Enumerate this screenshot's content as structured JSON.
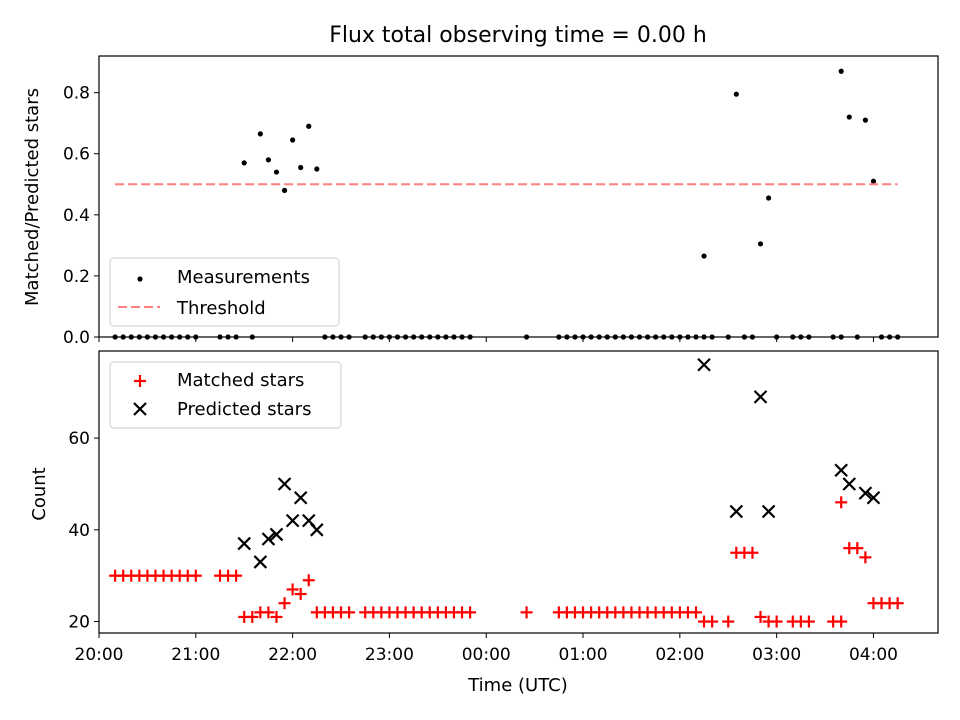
{
  "figure": {
    "title": "Flux total observing time = 0.00 h"
  },
  "chart_data": [
    {
      "type": "scatter",
      "ylabel": "Matched/Predicted stars",
      "xlabel": "",
      "xlim": [
        "20:00",
        "04:40"
      ],
      "ylim": [
        0,
        0.92
      ],
      "yticks": [
        0.0,
        0.2,
        0.4,
        0.6,
        0.8
      ],
      "ytick_labels": [
        "0.0",
        "0.2",
        "0.4",
        "0.6",
        "0.8"
      ],
      "legend": {
        "placement": "lower-left",
        "entries": [
          "Measurements",
          "Threshold"
        ]
      },
      "threshold": {
        "name": "Threshold",
        "value": 0.5,
        "x_start": "20:10",
        "x_end": "04:15",
        "color": "#ff7f7f"
      },
      "series": [
        {
          "name": "Measurements",
          "color": "#000000",
          "points": [
            [
              "20:10",
              0
            ],
            [
              "20:15",
              0
            ],
            [
              "20:20",
              0
            ],
            [
              "20:25",
              0
            ],
            [
              "20:30",
              0
            ],
            [
              "20:35",
              0
            ],
            [
              "20:40",
              0
            ],
            [
              "20:45",
              0
            ],
            [
              "20:50",
              0
            ],
            [
              "20:55",
              0
            ],
            [
              "21:00",
              0
            ],
            [
              "21:15",
              0
            ],
            [
              "21:20",
              0
            ],
            [
              "21:25",
              0
            ],
            [
              "21:30",
              0.57
            ],
            [
              "21:35",
              0
            ],
            [
              "21:40",
              0.665
            ],
            [
              "21:45",
              0.58
            ],
            [
              "21:50",
              0.54
            ],
            [
              "21:55",
              0.48
            ],
            [
              "22:00",
              0.645
            ],
            [
              "22:05",
              0.555
            ],
            [
              "22:10",
              0.69
            ],
            [
              "22:15",
              0.55
            ],
            [
              "22:20",
              0
            ],
            [
              "22:25",
              0
            ],
            [
              "22:30",
              0
            ],
            [
              "22:35",
              0
            ],
            [
              "22:45",
              0
            ],
            [
              "22:50",
              0
            ],
            [
              "22:55",
              0
            ],
            [
              "23:00",
              0
            ],
            [
              "23:05",
              0
            ],
            [
              "23:10",
              0
            ],
            [
              "23:15",
              0
            ],
            [
              "23:20",
              0
            ],
            [
              "23:25",
              0
            ],
            [
              "23:30",
              0
            ],
            [
              "23:35",
              0
            ],
            [
              "23:40",
              0
            ],
            [
              "23:45",
              0
            ],
            [
              "23:50",
              0
            ],
            [
              "00:25",
              0
            ],
            [
              "00:45",
              0
            ],
            [
              "00:50",
              0
            ],
            [
              "00:55",
              0
            ],
            [
              "01:00",
              0
            ],
            [
              "01:05",
              0
            ],
            [
              "01:10",
              0
            ],
            [
              "01:15",
              0
            ],
            [
              "01:20",
              0
            ],
            [
              "01:25",
              0
            ],
            [
              "01:30",
              0
            ],
            [
              "01:35",
              0
            ],
            [
              "01:40",
              0
            ],
            [
              "01:45",
              0
            ],
            [
              "01:50",
              0
            ],
            [
              "01:55",
              0
            ],
            [
              "02:00",
              0
            ],
            [
              "02:05",
              0
            ],
            [
              "02:10",
              0
            ],
            [
              "02:15",
              0
            ],
            [
              "02:15",
              0.265
            ],
            [
              "02:20",
              0
            ],
            [
              "02:30",
              0
            ],
            [
              "02:35",
              0.795
            ],
            [
              "02:40",
              0
            ],
            [
              "02:45",
              0
            ],
            [
              "02:50",
              0.305
            ],
            [
              "02:55",
              0.455
            ],
            [
              "03:00",
              0
            ],
            [
              "03:10",
              0
            ],
            [
              "03:15",
              0
            ],
            [
              "03:20",
              0
            ],
            [
              "03:35",
              0
            ],
            [
              "03:40",
              0
            ],
            [
              "03:40",
              0.87
            ],
            [
              "03:45",
              0.72
            ],
            [
              "03:50",
              0
            ],
            [
              "03:55",
              0.71
            ],
            [
              "04:00",
              0.51
            ],
            [
              "04:05",
              0
            ],
            [
              "04:10",
              0
            ],
            [
              "04:15",
              0
            ]
          ]
        }
      ]
    },
    {
      "type": "scatter",
      "ylabel": "Count",
      "xlabel": "Time (UTC)",
      "xlim": [
        "20:00",
        "04:40"
      ],
      "ylim": [
        17.5,
        79
      ],
      "yticks": [
        20,
        40,
        60
      ],
      "ytick_labels": [
        "20",
        "40",
        "60"
      ],
      "xticks": [
        "20:00",
        "21:00",
        "22:00",
        "23:00",
        "00:00",
        "01:00",
        "02:00",
        "03:00",
        "04:00"
      ],
      "legend": {
        "placement": "upper-left",
        "entries": [
          "Matched stars",
          "Predicted stars"
        ]
      },
      "series": [
        {
          "name": "Matched stars",
          "marker": "plus",
          "color": "#ff0000",
          "points": [
            [
              "20:10",
              30
            ],
            [
              "20:15",
              30
            ],
            [
              "20:20",
              30
            ],
            [
              "20:25",
              30
            ],
            [
              "20:30",
              30
            ],
            [
              "20:35",
              30
            ],
            [
              "20:40",
              30
            ],
            [
              "20:45",
              30
            ],
            [
              "20:50",
              30
            ],
            [
              "20:55",
              30
            ],
            [
              "21:00",
              30
            ],
            [
              "21:15",
              30
            ],
            [
              "21:20",
              30
            ],
            [
              "21:25",
              30
            ],
            [
              "21:30",
              21
            ],
            [
              "21:35",
              21
            ],
            [
              "21:40",
              22
            ],
            [
              "21:45",
              22
            ],
            [
              "21:50",
              21
            ],
            [
              "21:55",
              24
            ],
            [
              "22:00",
              27
            ],
            [
              "22:05",
              26
            ],
            [
              "22:10",
              29
            ],
            [
              "22:15",
              22
            ],
            [
              "22:20",
              22
            ],
            [
              "22:25",
              22
            ],
            [
              "22:30",
              22
            ],
            [
              "22:35",
              22
            ],
            [
              "22:45",
              22
            ],
            [
              "22:50",
              22
            ],
            [
              "22:55",
              22
            ],
            [
              "23:00",
              22
            ],
            [
              "23:05",
              22
            ],
            [
              "23:10",
              22
            ],
            [
              "23:15",
              22
            ],
            [
              "23:20",
              22
            ],
            [
              "23:25",
              22
            ],
            [
              "23:30",
              22
            ],
            [
              "23:35",
              22
            ],
            [
              "23:40",
              22
            ],
            [
              "23:45",
              22
            ],
            [
              "23:50",
              22
            ],
            [
              "00:25",
              22
            ],
            [
              "00:45",
              22
            ],
            [
              "00:50",
              22
            ],
            [
              "00:55",
              22
            ],
            [
              "01:00",
              22
            ],
            [
              "01:05",
              22
            ],
            [
              "01:10",
              22
            ],
            [
              "01:15",
              22
            ],
            [
              "01:20",
              22
            ],
            [
              "01:25",
              22
            ],
            [
              "01:30",
              22
            ],
            [
              "01:35",
              22
            ],
            [
              "01:40",
              22
            ],
            [
              "01:45",
              22
            ],
            [
              "01:50",
              22
            ],
            [
              "01:55",
              22
            ],
            [
              "02:00",
              22
            ],
            [
              "02:05",
              22
            ],
            [
              "02:10",
              22
            ],
            [
              "02:15",
              20
            ],
            [
              "02:20",
              20
            ],
            [
              "02:30",
              20
            ],
            [
              "02:35",
              35
            ],
            [
              "02:40",
              35
            ],
            [
              "02:45",
              35
            ],
            [
              "02:50",
              21
            ],
            [
              "02:55",
              20
            ],
            [
              "03:00",
              20
            ],
            [
              "03:10",
              20
            ],
            [
              "03:15",
              20
            ],
            [
              "03:20",
              20
            ],
            [
              "03:35",
              20
            ],
            [
              "03:40",
              20
            ],
            [
              "03:40",
              46
            ],
            [
              "03:45",
              36
            ],
            [
              "03:50",
              36
            ],
            [
              "03:55",
              34
            ],
            [
              "04:00",
              24
            ],
            [
              "04:05",
              24
            ],
            [
              "04:10",
              24
            ],
            [
              "04:15",
              24
            ]
          ]
        },
        {
          "name": "Predicted stars",
          "marker": "x",
          "color": "#000000",
          "points": [
            [
              "21:30",
              37
            ],
            [
              "21:40",
              33
            ],
            [
              "21:45",
              38
            ],
            [
              "21:50",
              39
            ],
            [
              "21:55",
              50
            ],
            [
              "22:00",
              42
            ],
            [
              "22:05",
              47
            ],
            [
              "22:10",
              42
            ],
            [
              "22:15",
              40
            ],
            [
              "02:15",
              76
            ],
            [
              "02:35",
              44
            ],
            [
              "02:50",
              69
            ],
            [
              "02:55",
              44
            ],
            [
              "03:40",
              53
            ],
            [
              "03:45",
              50
            ],
            [
              "03:55",
              48
            ],
            [
              "04:00",
              47
            ]
          ]
        }
      ]
    }
  ]
}
